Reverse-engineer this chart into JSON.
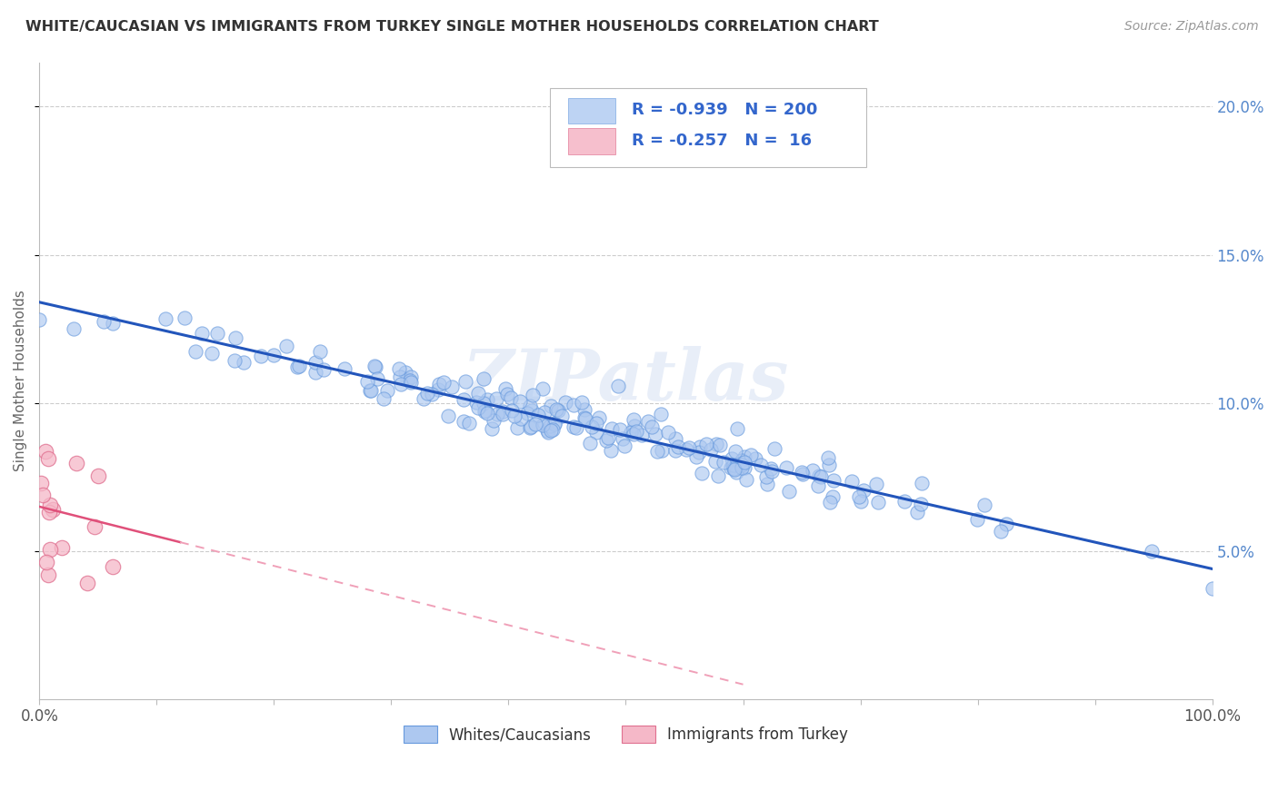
{
  "title": "WHITE/CAUCASIAN VS IMMIGRANTS FROM TURKEY SINGLE MOTHER HOUSEHOLDS CORRELATION CHART",
  "source": "Source: ZipAtlas.com",
  "ylabel": "Single Mother Households",
  "watermark": "ZIPatlas",
  "blue_R": -0.939,
  "blue_N": 200,
  "pink_R": -0.257,
  "pink_N": 16,
  "blue_color_face": "#adc8f0",
  "blue_color_edge": "#6699dd",
  "pink_color_face": "#f5b8c8",
  "pink_color_edge": "#e07090",
  "blue_line_color": "#2255bb",
  "pink_line_solid_color": "#e0507a",
  "pink_line_dash_color": "#f0a0b8",
  "legend_text_color": "#3366cc",
  "title_color": "#333333",
  "source_color": "#999999",
  "background_color": "#ffffff",
  "grid_color": "#cccccc",
  "xlim": [
    0.0,
    1.0
  ],
  "ylim": [
    0.0,
    0.215
  ],
  "x_ticks": [
    0.0,
    0.1,
    0.2,
    0.3,
    0.4,
    0.5,
    0.6,
    0.7,
    0.8,
    0.9,
    1.0
  ],
  "x_tick_labels": [
    "0.0%",
    "",
    "",
    "",
    "",
    "",
    "",
    "",
    "",
    "",
    "100.0%"
  ],
  "y_ticks": [
    0.05,
    0.1,
    0.15,
    0.2
  ],
  "y_tick_labels": [
    "5.0%",
    "10.0%",
    "15.0%",
    "20.0%"
  ],
  "blue_intercept": 0.134,
  "blue_slope": -0.09,
  "pink_intercept": 0.065,
  "pink_slope": -0.1
}
